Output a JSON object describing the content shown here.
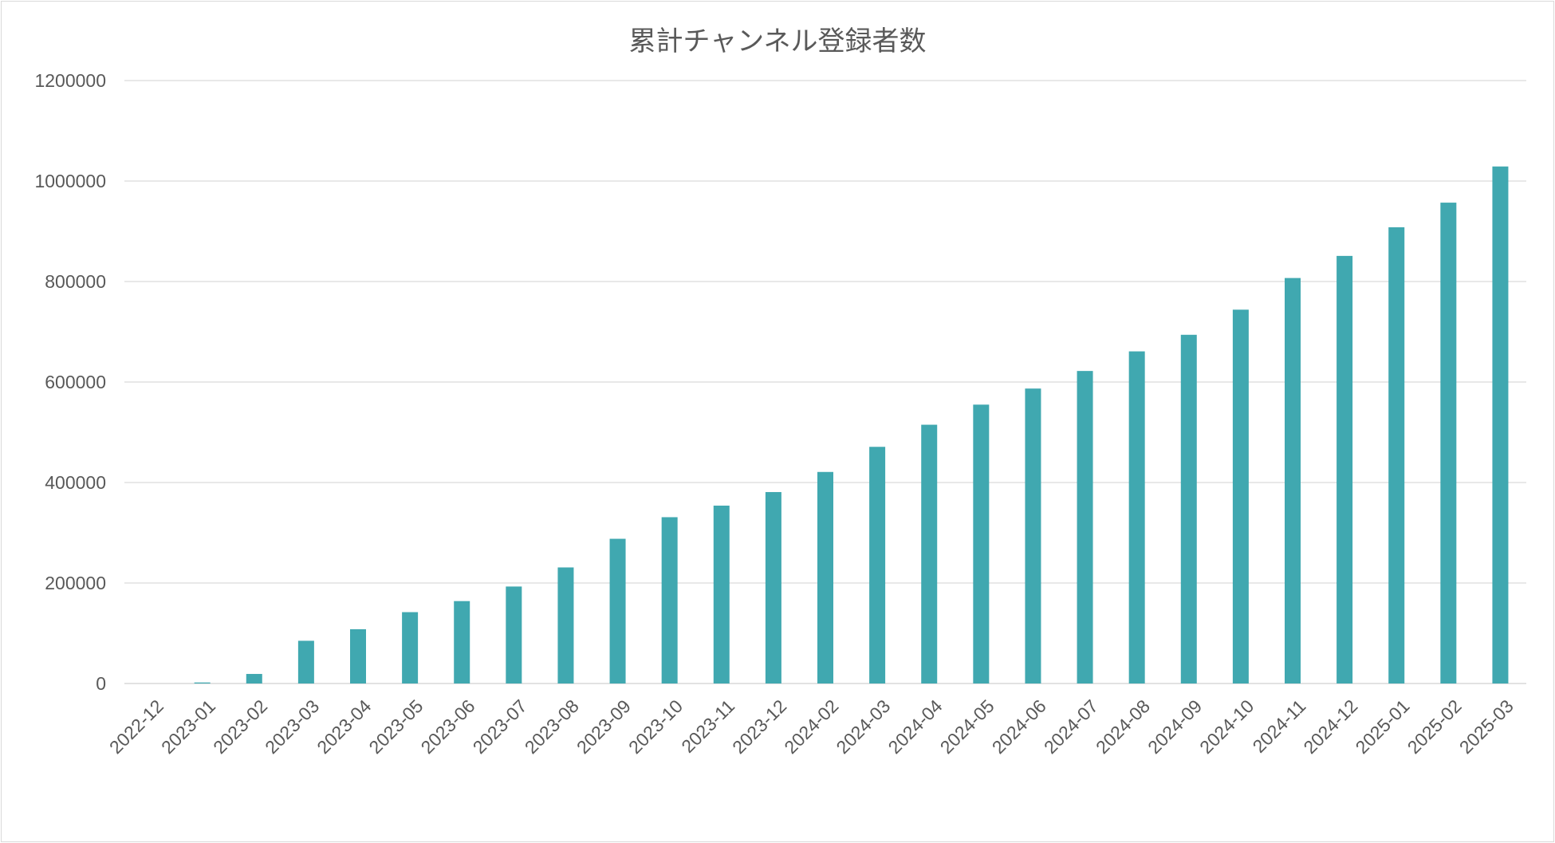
{
  "chart_data": {
    "type": "bar",
    "title": "累計チャンネル登録者数",
    "xlabel": "",
    "ylabel": "",
    "ylim": [
      0,
      1200000
    ],
    "yticks": [
      0,
      200000,
      400000,
      600000,
      800000,
      1000000,
      1200000
    ],
    "ytick_labels": [
      "0",
      "200000",
      "400000",
      "600000",
      "800000",
      "1000000",
      "1200000"
    ],
    "grid": true,
    "legend": "none",
    "bar_color": "#40a8b0",
    "categories": [
      "2022-12",
      "2023-01",
      "2023-02",
      "2023-03",
      "2023-04",
      "2023-05",
      "2023-06",
      "2023-07",
      "2023-08",
      "2023-09",
      "2023-10",
      "2023-11",
      "2023-12",
      "2024-02",
      "2024-03",
      "2024-04",
      "2024-05",
      "2024-06",
      "2024-07",
      "2024-08",
      "2024-09",
      "2024-10",
      "2024-11",
      "2024-12",
      "2025-01",
      "2025-02",
      "2025-03"
    ],
    "values": [
      0,
      2000,
      19000,
      85000,
      108000,
      142000,
      164000,
      193000,
      231000,
      288000,
      331000,
      354000,
      381000,
      421000,
      471000,
      515000,
      555000,
      587000,
      622000,
      661000,
      694000,
      744000,
      807000,
      851000,
      908000,
      957000,
      1029000
    ]
  }
}
